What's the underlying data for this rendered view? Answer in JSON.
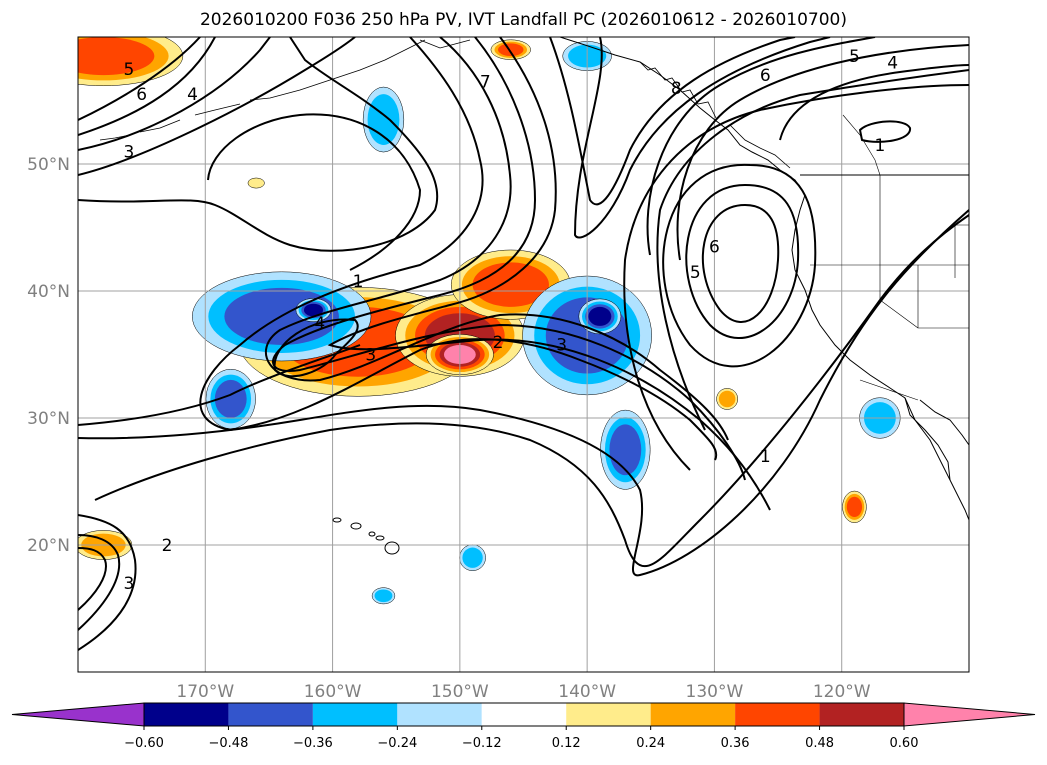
{
  "title": "2026010200 F036 250 hPa PV, IVT Landfall PC (2026010612 - 2026010700)",
  "map": {
    "lon_range": [
      -180,
      -110
    ],
    "lat_range": [
      10,
      60
    ],
    "lon_ticks": [
      {
        "lon": -170,
        "label": "170°W"
      },
      {
        "lon": -160,
        "label": "160°W"
      },
      {
        "lon": -150,
        "label": "150°W"
      },
      {
        "lon": -140,
        "label": "140°W"
      },
      {
        "lon": -130,
        "label": "130°W"
      },
      {
        "lon": -120,
        "label": "120°W"
      }
    ],
    "lat_ticks": [
      {
        "lat": 20,
        "label": "20°N"
      },
      {
        "lat": 30,
        "label": "30°N"
      },
      {
        "lat": 40,
        "label": "40°N"
      },
      {
        "lat": 50,
        "label": "50°N"
      }
    ],
    "grid": true,
    "ocean_color": "#ffffff",
    "tick_label_color": "#808080",
    "contour_labels": [
      {
        "lon": -176,
        "lat": 57.5,
        "text": "5"
      },
      {
        "lon": -175,
        "lat": 55.5,
        "text": "6"
      },
      {
        "lon": -171,
        "lat": 55.5,
        "text": "4"
      },
      {
        "lon": -176,
        "lat": 51.0,
        "text": "3"
      },
      {
        "lon": -158,
        "lat": 40.8,
        "text": "1"
      },
      {
        "lon": -161,
        "lat": 37.5,
        "text": "4"
      },
      {
        "lon": -157,
        "lat": 35.0,
        "text": "3"
      },
      {
        "lon": -148,
        "lat": 56.5,
        "text": "7"
      },
      {
        "lon": -147,
        "lat": 36.0,
        "text": "2"
      },
      {
        "lon": -142,
        "lat": 35.8,
        "text": "3"
      },
      {
        "lon": -133,
        "lat": 56.0,
        "text": "8"
      },
      {
        "lon": -131.5,
        "lat": 41.5,
        "text": "5"
      },
      {
        "lon": -130,
        "lat": 43.5,
        "text": "6"
      },
      {
        "lon": -126,
        "lat": 57.0,
        "text": "6"
      },
      {
        "lon": -119,
        "lat": 58.5,
        "text": "5"
      },
      {
        "lon": -116,
        "lat": 58.0,
        "text": "4"
      },
      {
        "lon": -117,
        "lat": 51.5,
        "text": "1"
      },
      {
        "lon": -126,
        "lat": 27.0,
        "text": "1"
      },
      {
        "lon": -176,
        "lat": 17.0,
        "text": "3"
      },
      {
        "lon": -173,
        "lat": 20.0,
        "text": "2"
      }
    ]
  },
  "colorbar": {
    "levels": [
      "−0.60",
      "−0.48",
      "−0.36",
      "−0.24",
      "−0.12",
      "0.12",
      "0.24",
      "0.36",
      "0.48",
      "0.60"
    ],
    "colors": [
      "#9932cc",
      "#00008b",
      "#3355cc",
      "#00bfff",
      "#b0e2ff",
      "#ffffff",
      "#ffec8b",
      "#ffa500",
      "#ff4500",
      "#b22222",
      "#ff82ab"
    ]
  },
  "chart_data": {
    "type": "heatmap",
    "x_range": [
      -180,
      -110
    ],
    "y_range": [
      10,
      60
    ],
    "blobs": [
      {
        "lon": -158,
        "lat": 36.0,
        "rx": 12,
        "ry": 5.5,
        "value": 0.36
      },
      {
        "lon": -150,
        "lat": 36.5,
        "rx": 5.5,
        "ry": 3.5,
        "value": 0.48
      },
      {
        "lon": -150,
        "lat": 35.0,
        "rx": 2.5,
        "ry": 1.5,
        "value": 0.6
      },
      {
        "lon": -146,
        "lat": 40.5,
        "rx": 6,
        "ry": 3.5,
        "value": 0.36
      },
      {
        "lon": -164,
        "lat": 38.0,
        "rx": 9,
        "ry": 4.5,
        "value": -0.36
      },
      {
        "lon": -161.5,
        "lat": 38.5,
        "rx": 1.5,
        "ry": 1.0,
        "value": -0.48
      },
      {
        "lon": -168,
        "lat": 31.5,
        "rx": 2.5,
        "ry": 3,
        "value": -0.36
      },
      {
        "lon": -140,
        "lat": 36.5,
        "rx": 6.5,
        "ry": 6,
        "value": -0.36
      },
      {
        "lon": -139,
        "lat": 38.0,
        "rx": 1.8,
        "ry": 1.5,
        "value": -0.48
      },
      {
        "lon": -137,
        "lat": 27.5,
        "rx": 2.5,
        "ry": 4,
        "value": -0.36
      },
      {
        "lon": -156,
        "lat": 53.5,
        "rx": 2.5,
        "ry": 4,
        "value": -0.24
      },
      {
        "lon": -140,
        "lat": 58.5,
        "rx": 3,
        "ry": 1.8,
        "value": -0.24
      },
      {
        "lon": -117,
        "lat": 30.0,
        "rx": 2.5,
        "ry": 2.5,
        "value": -0.24
      },
      {
        "lon": -178,
        "lat": 58.5,
        "rx": 8,
        "ry": 3,
        "value": 0.36
      },
      {
        "lon": -178,
        "lat": 20.0,
        "rx": 3.5,
        "ry": 1.8,
        "value": 0.24
      },
      {
        "lon": -146,
        "lat": 59.0,
        "rx": 2,
        "ry": 1.0,
        "value": 0.36
      },
      {
        "lon": -119,
        "lat": 23.0,
        "rx": 1.2,
        "ry": 1.6,
        "value": 0.36
      },
      {
        "lon": -129,
        "lat": 31.5,
        "rx": 1.3,
        "ry": 1.3,
        "value": 0.24
      },
      {
        "lon": -166,
        "lat": 48.5,
        "rx": 1.3,
        "ry": 0.8,
        "value": 0.12
      },
      {
        "lon": -149,
        "lat": 19.0,
        "rx": 1.6,
        "ry": 1.6,
        "value": -0.24
      },
      {
        "lon": -156,
        "lat": 16.0,
        "rx": 1.4,
        "ry": 1.0,
        "value": -0.24
      }
    ]
  }
}
